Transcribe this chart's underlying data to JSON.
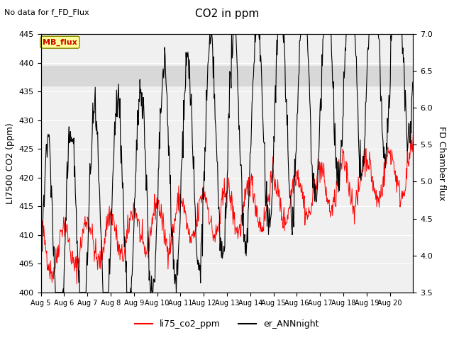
{
  "title": "CO2 in ppm",
  "subtitle": "No data for f_FD_Flux",
  "ylabel_left": "LI7500 CO2 (ppm)",
  "ylabel_right": "FD Chamber flux",
  "ylim_left": [
    400,
    445
  ],
  "ylim_right": [
    3.5,
    7.0
  ],
  "yticks_left": [
    400,
    405,
    410,
    415,
    420,
    425,
    430,
    435,
    440,
    445
  ],
  "yticks_right": [
    3.5,
    4.0,
    4.5,
    5.0,
    5.5,
    6.0,
    6.5,
    7.0
  ],
  "xticklabels": [
    "Aug 5",
    "Aug 6",
    "Aug 7",
    "Aug 8",
    "Aug 9",
    "Aug 10",
    "Aug 11",
    "Aug 12",
    "Aug 13",
    "Aug 14",
    "Aug 15",
    "Aug 16",
    "Aug 17",
    "Aug 18",
    "Aug 19",
    "Aug 20"
  ],
  "legend_entries": [
    "li75_co2_ppm",
    "er_ANNnight"
  ],
  "legend_colors": [
    "red",
    "black"
  ],
  "line_color_red": "#ff0000",
  "line_color_black": "#000000",
  "band_color": "#d8d8d8",
  "band_ylim": [
    436.0,
    439.5
  ],
  "mb_flux_box_color": "#ffff99",
  "mb_flux_text_color": "#cc0000",
  "background_color": "#f0f0f0",
  "n_days": 16,
  "pts_per_day": 48
}
